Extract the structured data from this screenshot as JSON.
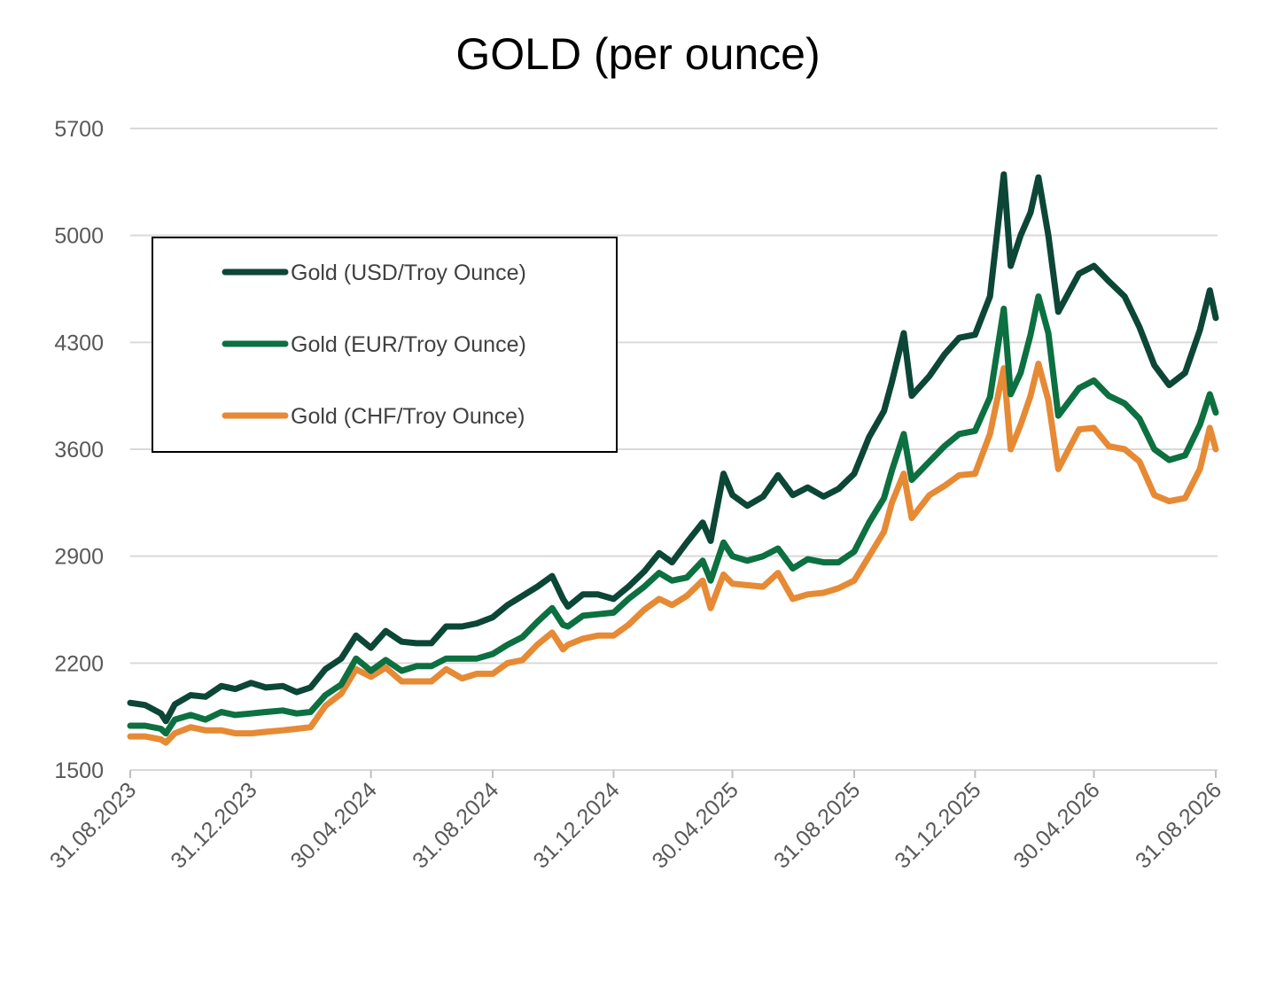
{
  "chart_data": {
    "type": "line",
    "title": "GOLD (per ounce)",
    "xlabel": "",
    "ylabel": "",
    "ylim": [
      1500,
      5700
    ],
    "yticks": [
      "1500",
      "2200",
      "2900",
      "3600",
      "4300",
      "5000",
      "5700"
    ],
    "xlim": [
      "31.08.2023",
      "31.08.2026"
    ],
    "xticks": [
      "31.08.2023",
      "31.12.2023",
      "30.04.2024",
      "31.08.2024",
      "31.12.2024",
      "30.04.2025",
      "31.08.2025",
      "31.12.2025",
      "30.04.2026",
      "31.08.2026"
    ],
    "grid": true,
    "legend": "upper-left",
    "series": [
      {
        "name": "Gold (USD/Troy Ounce)",
        "color": "#0c4636",
        "points": [
          [
            "31.08.2023",
            1940
          ],
          [
            "15.09.2023",
            1925
          ],
          [
            "01.10.2023",
            1870
          ],
          [
            "06.10.2023",
            1820
          ],
          [
            "15.10.2023",
            1930
          ],
          [
            "31.10.2023",
            1990
          ],
          [
            "15.11.2023",
            1980
          ],
          [
            "01.12.2023",
            2050
          ],
          [
            "15.12.2023",
            2030
          ],
          [
            "31.12.2023",
            2070
          ],
          [
            "15.01.2024",
            2040
          ],
          [
            "01.02.2024",
            2050
          ],
          [
            "15.02.2024",
            2010
          ],
          [
            "29.02.2024",
            2040
          ],
          [
            "15.03.2024",
            2160
          ],
          [
            "31.03.2024",
            2230
          ],
          [
            "15.04.2024",
            2380
          ],
          [
            "30.04.2024",
            2300
          ],
          [
            "15.05.2024",
            2410
          ],
          [
            "31.05.2024",
            2340
          ],
          [
            "15.06.2024",
            2330
          ],
          [
            "30.06.2024",
            2330
          ],
          [
            "15.07.2024",
            2440
          ],
          [
            "31.07.2024",
            2440
          ],
          [
            "15.08.2024",
            2460
          ],
          [
            "31.08.2024",
            2500
          ],
          [
            "15.09.2024",
            2580
          ],
          [
            "30.09.2024",
            2640
          ],
          [
            "15.10.2024",
            2700
          ],
          [
            "30.10.2024",
            2770
          ],
          [
            "10.11.2024",
            2620
          ],
          [
            "15.11.2024",
            2570
          ],
          [
            "30.11.2024",
            2650
          ],
          [
            "15.12.2024",
            2650
          ],
          [
            "31.12.2024",
            2620
          ],
          [
            "15.01.2025",
            2700
          ],
          [
            "31.01.2025",
            2800
          ],
          [
            "15.02.2025",
            2920
          ],
          [
            "28.02.2025",
            2860
          ],
          [
            "15.03.2025",
            2990
          ],
          [
            "31.03.2025",
            3120
          ],
          [
            "08.04.2025",
            3000
          ],
          [
            "21.04.2025",
            3440
          ],
          [
            "30.04.2025",
            3300
          ],
          [
            "15.05.2025",
            3230
          ],
          [
            "31.05.2025",
            3290
          ],
          [
            "15.06.2025",
            3430
          ],
          [
            "30.06.2025",
            3300
          ],
          [
            "15.07.2025",
            3350
          ],
          [
            "31.07.2025",
            3290
          ],
          [
            "15.08.2025",
            3340
          ],
          [
            "31.08.2025",
            3440
          ],
          [
            "15.09.2025",
            3680
          ],
          [
            "30.09.2025",
            3850
          ],
          [
            "08.10.2025",
            4040
          ],
          [
            "20.10.2025",
            4360
          ],
          [
            "28.10.2025",
            3950
          ],
          [
            "15.11.2025",
            4080
          ],
          [
            "30.11.2025",
            4220
          ],
          [
            "15.12.2025",
            4330
          ],
          [
            "31.12.2025",
            4350
          ],
          [
            "15.01.2026",
            4600
          ],
          [
            "29.01.2026",
            5400
          ],
          [
            "05.02.2026",
            4800
          ],
          [
            "15.02.2026",
            5000
          ],
          [
            "25.02.2026",
            5150
          ],
          [
            "05.03.2026",
            5380
          ],
          [
            "15.03.2026",
            5000
          ],
          [
            "25.03.2026",
            4500
          ],
          [
            "15.04.2026",
            4750
          ],
          [
            "30.04.2026",
            4800
          ],
          [
            "15.05.2026",
            4700
          ],
          [
            "31.05.2026",
            4600
          ],
          [
            "15.06.2026",
            4400
          ],
          [
            "30.06.2026",
            4150
          ],
          [
            "15.07.2026",
            4020
          ],
          [
            "31.07.2026",
            4100
          ],
          [
            "15.08.2026",
            4380
          ],
          [
            "25.08.2026",
            4640
          ],
          [
            "31.08.2026",
            4460
          ]
        ]
      },
      {
        "name": "Gold (EUR/Troy Ounce)",
        "color": "#0c7040",
        "points": [
          [
            "31.08.2023",
            1790
          ],
          [
            "15.09.2023",
            1790
          ],
          [
            "01.10.2023",
            1770
          ],
          [
            "06.10.2023",
            1740
          ],
          [
            "15.10.2023",
            1830
          ],
          [
            "31.10.2023",
            1860
          ],
          [
            "15.11.2023",
            1830
          ],
          [
            "01.12.2023",
            1880
          ],
          [
            "15.12.2023",
            1860
          ],
          [
            "31.12.2023",
            1870
          ],
          [
            "15.01.2024",
            1880
          ],
          [
            "01.02.2024",
            1890
          ],
          [
            "15.02.2024",
            1870
          ],
          [
            "29.02.2024",
            1880
          ],
          [
            "15.03.2024",
            1990
          ],
          [
            "31.03.2024",
            2060
          ],
          [
            "15.04.2024",
            2230
          ],
          [
            "30.04.2024",
            2150
          ],
          [
            "15.05.2024",
            2220
          ],
          [
            "31.05.2024",
            2150
          ],
          [
            "15.06.2024",
            2180
          ],
          [
            "30.06.2024",
            2180
          ],
          [
            "15.07.2024",
            2230
          ],
          [
            "31.07.2024",
            2230
          ],
          [
            "15.08.2024",
            2230
          ],
          [
            "31.08.2024",
            2260
          ],
          [
            "15.09.2024",
            2320
          ],
          [
            "30.09.2024",
            2370
          ],
          [
            "15.10.2024",
            2470
          ],
          [
            "30.10.2024",
            2560
          ],
          [
            "10.11.2024",
            2450
          ],
          [
            "15.11.2024",
            2440
          ],
          [
            "30.11.2024",
            2510
          ],
          [
            "15.12.2024",
            2520
          ],
          [
            "31.12.2024",
            2530
          ],
          [
            "15.01.2025",
            2620
          ],
          [
            "31.01.2025",
            2700
          ],
          [
            "15.02.2025",
            2790
          ],
          [
            "28.02.2025",
            2740
          ],
          [
            "15.03.2025",
            2760
          ],
          [
            "31.03.2025",
            2870
          ],
          [
            "08.04.2025",
            2740
          ],
          [
            "21.04.2025",
            2990
          ],
          [
            "30.04.2025",
            2900
          ],
          [
            "15.05.2025",
            2870
          ],
          [
            "31.05.2025",
            2900
          ],
          [
            "15.06.2025",
            2950
          ],
          [
            "30.06.2025",
            2820
          ],
          [
            "15.07.2025",
            2880
          ],
          [
            "31.07.2025",
            2860
          ],
          [
            "15.08.2025",
            2860
          ],
          [
            "31.08.2025",
            2930
          ],
          [
            "15.09.2025",
            3120
          ],
          [
            "30.09.2025",
            3280
          ],
          [
            "08.10.2025",
            3460
          ],
          [
            "20.10.2025",
            3700
          ],
          [
            "28.10.2025",
            3400
          ],
          [
            "15.11.2025",
            3520
          ],
          [
            "30.11.2025",
            3620
          ],
          [
            "15.12.2025",
            3700
          ],
          [
            "31.12.2025",
            3720
          ],
          [
            "15.01.2026",
            3940
          ],
          [
            "29.01.2026",
            4520
          ],
          [
            "05.02.2026",
            3960
          ],
          [
            "15.02.2026",
            4100
          ],
          [
            "25.02.2026",
            4350
          ],
          [
            "05.03.2026",
            4600
          ],
          [
            "15.03.2026",
            4360
          ],
          [
            "25.03.2026",
            3820
          ],
          [
            "15.04.2026",
            4000
          ],
          [
            "30.04.2026",
            4050
          ],
          [
            "15.05.2026",
            3950
          ],
          [
            "31.05.2026",
            3900
          ],
          [
            "15.06.2026",
            3800
          ],
          [
            "30.06.2026",
            3600
          ],
          [
            "15.07.2026",
            3530
          ],
          [
            "31.07.2026",
            3560
          ],
          [
            "15.08.2026",
            3760
          ],
          [
            "25.08.2026",
            3960
          ],
          [
            "31.08.2026",
            3840
          ]
        ]
      },
      {
        "name": "Gold (CHF/Troy Ounce)",
        "color": "#e68a35",
        "points": [
          [
            "31.08.2023",
            1720
          ],
          [
            "15.09.2023",
            1720
          ],
          [
            "01.10.2023",
            1700
          ],
          [
            "06.10.2023",
            1680
          ],
          [
            "15.10.2023",
            1740
          ],
          [
            "31.10.2023",
            1780
          ],
          [
            "15.11.2023",
            1760
          ],
          [
            "01.12.2023",
            1760
          ],
          [
            "15.12.2023",
            1740
          ],
          [
            "31.12.2023",
            1740
          ],
          [
            "15.01.2024",
            1750
          ],
          [
            "01.02.2024",
            1760
          ],
          [
            "15.02.2024",
            1770
          ],
          [
            "29.02.2024",
            1780
          ],
          [
            "15.03.2024",
            1920
          ],
          [
            "31.03.2024",
            2000
          ],
          [
            "15.04.2024",
            2160
          ],
          [
            "30.04.2024",
            2110
          ],
          [
            "15.05.2024",
            2170
          ],
          [
            "31.05.2024",
            2080
          ],
          [
            "15.06.2024",
            2080
          ],
          [
            "30.06.2024",
            2080
          ],
          [
            "15.07.2024",
            2160
          ],
          [
            "31.07.2024",
            2100
          ],
          [
            "15.08.2024",
            2130
          ],
          [
            "31.08.2024",
            2130
          ],
          [
            "15.09.2024",
            2200
          ],
          [
            "30.09.2024",
            2220
          ],
          [
            "15.10.2024",
            2320
          ],
          [
            "30.10.2024",
            2400
          ],
          [
            "10.11.2024",
            2290
          ],
          [
            "15.11.2024",
            2320
          ],
          [
            "30.11.2024",
            2360
          ],
          [
            "15.12.2024",
            2380
          ],
          [
            "31.12.2024",
            2380
          ],
          [
            "15.01.2025",
            2450
          ],
          [
            "31.01.2025",
            2550
          ],
          [
            "15.02.2025",
            2620
          ],
          [
            "28.02.2025",
            2580
          ],
          [
            "15.03.2025",
            2640
          ],
          [
            "31.03.2025",
            2740
          ],
          [
            "08.04.2025",
            2560
          ],
          [
            "21.04.2025",
            2780
          ],
          [
            "30.04.2025",
            2720
          ],
          [
            "15.05.2025",
            2710
          ],
          [
            "31.05.2025",
            2700
          ],
          [
            "15.06.2025",
            2790
          ],
          [
            "30.06.2025",
            2620
          ],
          [
            "15.07.2025",
            2650
          ],
          [
            "31.07.2025",
            2660
          ],
          [
            "15.08.2025",
            2690
          ],
          [
            "31.08.2025",
            2740
          ],
          [
            "15.09.2025",
            2900
          ],
          [
            "30.09.2025",
            3060
          ],
          [
            "08.10.2025",
            3250
          ],
          [
            "20.10.2025",
            3440
          ],
          [
            "28.10.2025",
            3150
          ],
          [
            "15.11.2025",
            3300
          ],
          [
            "30.11.2025",
            3360
          ],
          [
            "15.12.2025",
            3430
          ],
          [
            "31.12.2025",
            3440
          ],
          [
            "15.01.2026",
            3700
          ],
          [
            "29.01.2026",
            4130
          ],
          [
            "05.02.2026",
            3600
          ],
          [
            "15.02.2026",
            3760
          ],
          [
            "25.02.2026",
            3950
          ],
          [
            "05.03.2026",
            4160
          ],
          [
            "15.03.2026",
            3920
          ],
          [
            "25.03.2026",
            3470
          ],
          [
            "15.04.2026",
            3730
          ],
          [
            "30.04.2026",
            3740
          ],
          [
            "15.05.2026",
            3620
          ],
          [
            "31.05.2026",
            3600
          ],
          [
            "15.06.2026",
            3520
          ],
          [
            "30.06.2026",
            3300
          ],
          [
            "15.07.2026",
            3260
          ],
          [
            "31.07.2026",
            3280
          ],
          [
            "15.08.2026",
            3470
          ],
          [
            "25.08.2026",
            3740
          ],
          [
            "31.08.2026",
            3600
          ]
        ]
      }
    ]
  }
}
